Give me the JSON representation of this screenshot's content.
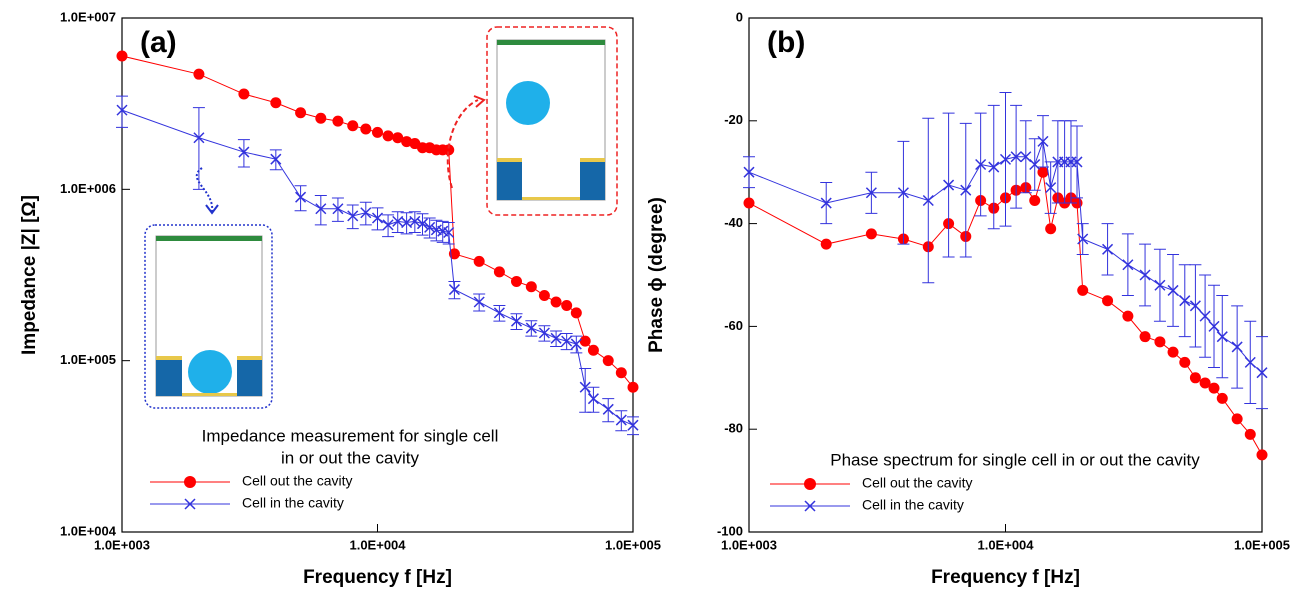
{
  "chart_data": [
    {
      "type": "line",
      "panel_label": "(a)",
      "xlabel": "Frequency f [Hz]",
      "ylabel": "Impedance |Z| [Ω]",
      "xlog": true,
      "ylog": true,
      "xlim": [
        1000,
        100000
      ],
      "ylim": [
        10000,
        10000000
      ],
      "xticks": [
        {
          "value": 1000,
          "label": "1.0E+003"
        },
        {
          "value": 10000,
          "label": "1.0E+004"
        },
        {
          "value": 100000,
          "label": "1.0E+005"
        }
      ],
      "yticks": [
        {
          "value": 10000,
          "label": "1.0E+004"
        },
        {
          "value": 100000,
          "label": "1.0E+005"
        },
        {
          "value": 1000000,
          "label": "1.0E+006"
        },
        {
          "value": 10000000,
          "label": "1.0E+007"
        }
      ],
      "annotation": [
        "Impedance measurement for single cell",
        "in or out the cavity"
      ],
      "x": [
        1000,
        2000,
        3000,
        4000,
        5000,
        6000,
        7000,
        8000,
        9000,
        10000,
        11000,
        12000,
        13000,
        14000,
        15000,
        16000,
        17000,
        18000,
        19000,
        20000,
        25000,
        30000,
        35000,
        40000,
        45000,
        50000,
        55000,
        60000,
        65000,
        70000,
        80000,
        90000,
        100000
      ],
      "series": [
        {
          "name": "Cell out the cavity",
          "color": "#ff0000",
          "marker": "circle",
          "values": [
            6000000,
            4700000,
            3600000,
            3200000,
            2800000,
            2600000,
            2500000,
            2350000,
            2250000,
            2150000,
            2050000,
            2000000,
            1900000,
            1850000,
            1750000,
            1750000,
            1700000,
            1700000,
            1700000,
            420000,
            380000,
            330000,
            290000,
            270000,
            240000,
            220000,
            210000,
            190000,
            130000,
            115000,
            100000,
            85000,
            70000
          ]
        },
        {
          "name": "Cell in the cavity",
          "color": "#3333dd",
          "marker": "cross",
          "values": [
            2900000,
            2000000,
            1650000,
            1500000,
            900000,
            770000,
            770000,
            700000,
            730000,
            680000,
            620000,
            650000,
            640000,
            650000,
            630000,
            600000,
            580000,
            570000,
            560000,
            260000,
            220000,
            190000,
            170000,
            155000,
            145000,
            135000,
            130000,
            125000,
            70000,
            60000,
            52000,
            45000,
            42000
          ],
          "errors": [
            600000,
            1000000,
            300000,
            200000,
            150000,
            150000,
            120000,
            110000,
            110000,
            100000,
            90000,
            90000,
            90000,
            90000,
            90000,
            80000,
            80000,
            80000,
            80000,
            30000,
            25000,
            20000,
            18000,
            16000,
            15000,
            14000,
            14000,
            14000,
            20000,
            10000,
            8000,
            6000,
            5000
          ]
        }
      ]
    },
    {
      "type": "line",
      "panel_label": "(b)",
      "xlabel": "Frequency f [Hz]",
      "ylabel": "Phase ϕ (degree)",
      "xlog": true,
      "ylog": false,
      "xlim": [
        1000,
        100000
      ],
      "ylim": [
        -100,
        0
      ],
      "xticks": [
        {
          "value": 1000,
          "label": "1.0E+003"
        },
        {
          "value": 10000,
          "label": "1.0E+004"
        },
        {
          "value": 100000,
          "label": "1.0E+005"
        }
      ],
      "yticks": [
        -100,
        -80,
        -60,
        -40,
        -20,
        0
      ],
      "annotation": [
        "Phase spectrum for single cell in or out the cavity"
      ],
      "x": [
        1000,
        2000,
        3000,
        4000,
        5000,
        6000,
        7000,
        8000,
        9000,
        10000,
        11000,
        12000,
        13000,
        14000,
        15000,
        16000,
        17000,
        18000,
        19000,
        20000,
        25000,
        30000,
        35000,
        40000,
        45000,
        50000,
        55000,
        60000,
        65000,
        70000,
        80000,
        90000,
        100000
      ],
      "series": [
        {
          "name": "Cell out the cavity",
          "color": "#ff0000",
          "marker": "circle",
          "values": [
            -36,
            -44,
            -42,
            -43,
            -44.5,
            -40,
            -42.5,
            -35.5,
            -37,
            -35,
            -33.5,
            -33,
            -35.5,
            -30,
            -41,
            -35,
            -36,
            -35,
            -36,
            -53,
            -55,
            -58,
            -62,
            -63,
            -65,
            -67,
            -70,
            -71,
            -72,
            -74,
            -78,
            -81,
            -85
          ]
        },
        {
          "name": "Cell in the cavity",
          "color": "#3333dd",
          "marker": "cross",
          "values": [
            -30,
            -36,
            -34,
            -34,
            -35.5,
            -32.5,
            -33.5,
            -28.5,
            -29,
            -27.5,
            -27,
            -27,
            -28.5,
            -24,
            -33,
            -28,
            -28,
            -28,
            -28,
            -43,
            -45,
            -48,
            -50,
            -52,
            -53,
            -55,
            -56,
            -58,
            -60,
            -62,
            -64,
            -67,
            -69
          ],
          "errors": [
            3,
            4,
            4,
            10,
            16,
            14,
            13,
            10,
            12,
            13,
            10,
            7,
            5,
            5,
            5,
            8,
            8,
            8,
            7,
            3,
            5,
            6,
            6,
            7,
            7,
            7,
            8,
            8,
            8,
            8,
            8,
            8,
            7
          ]
        }
      ]
    }
  ]
}
